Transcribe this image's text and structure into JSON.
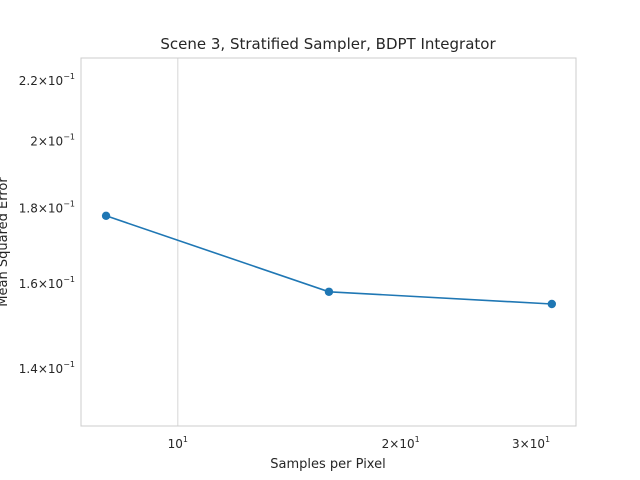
{
  "chart_data": {
    "type": "line",
    "title": "Scene 3, Stratified Sampler, BDPT Integrator",
    "xlabel": "Samples per Pixel",
    "ylabel": "Mean Squared Error",
    "xscale": "log",
    "yscale": "log",
    "xlim": [
      7.4,
      34.5
    ],
    "ylim": [
      0.128,
      0.228
    ],
    "grid": "x-major-only",
    "x": [
      8,
      16,
      32
    ],
    "series": [
      {
        "values": [
          0.178,
          0.158,
          0.155
        ],
        "color": "#1f77b4",
        "marker": "circle"
      }
    ],
    "x_ticks": [
      {
        "value": 10,
        "base": "10",
        "exp": "1"
      },
      {
        "value": 20,
        "base": "2×10",
        "exp": "1"
      },
      {
        "value": 30,
        "base": "3×10",
        "exp": "1"
      }
    ],
    "y_ticks": [
      {
        "value": 0.14,
        "base": "1.4×10",
        "exp": "−1"
      },
      {
        "value": 0.16,
        "base": "1.6×10",
        "exp": "−1"
      },
      {
        "value": 0.18,
        "base": "1.8×10",
        "exp": "−1"
      },
      {
        "value": 0.2,
        "base": "2×10",
        "exp": "−1"
      },
      {
        "value": 0.22,
        "base": "2.2×10",
        "exp": "−1"
      }
    ]
  }
}
